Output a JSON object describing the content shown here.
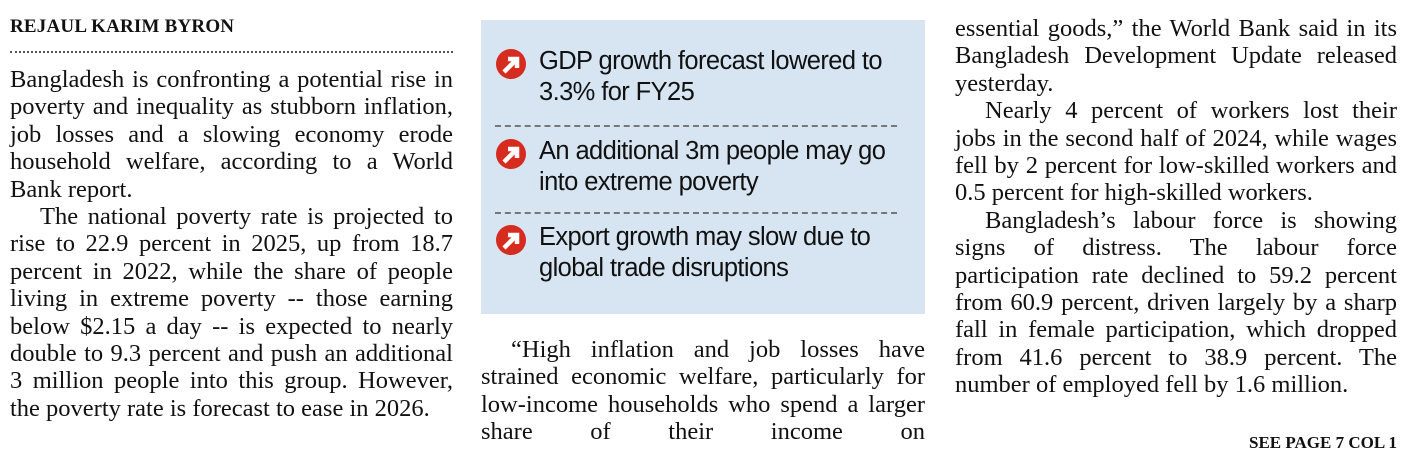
{
  "byline": "REJAUL KARIM BYRON",
  "column1": {
    "paragraphs": [
      "Bangladesh is confronting a potential rise in poverty and inequality as stubborn inflation, job losses and a slowing economy erode household welfare, according to a World Bank report.",
      "The national poverty rate is projected to rise to 22.9 percent in 2025, up from 18.7 percent in 2022, while the share of people living in extreme poverty -- those earning below $2.15 a day -- is expected to nearly double to 9.3 percent and push an additional 3 million people into this group. However, the poverty rate is forecast to ease in 2026."
    ]
  },
  "highlights": [
    "GDP growth forecast lowered to 3.3% for FY25",
    "An additional 3m people may go into extreme poverty",
    "Export growth may slow due to global trade disruptions"
  ],
  "column2": {
    "paragraphs": [
      "“High inflation and job losses have strained economic welfare, particularly for low-income households who spend a larger share of their income on"
    ]
  },
  "column3": {
    "paragraphs": [
      "essential goods,” the World Bank said in its Bangladesh Development Update released yesterday.",
      "Nearly 4 percent of workers lost their jobs in the second half of 2024, while wages fell by 2 percent for low-skilled workers and 0.5 percent for high-skilled workers.",
      "Bangladesh’s labour force is showing signs of distress. The labour force participation rate declined to 59.2 percent from 60.9 percent, driven largely by a sharp fall in female participation, which dropped from 41.6 percent to 38.9 percent. The number of employed fell by 1.6 million."
    ]
  },
  "jump": "SEE PAGE 7 COL 1"
}
